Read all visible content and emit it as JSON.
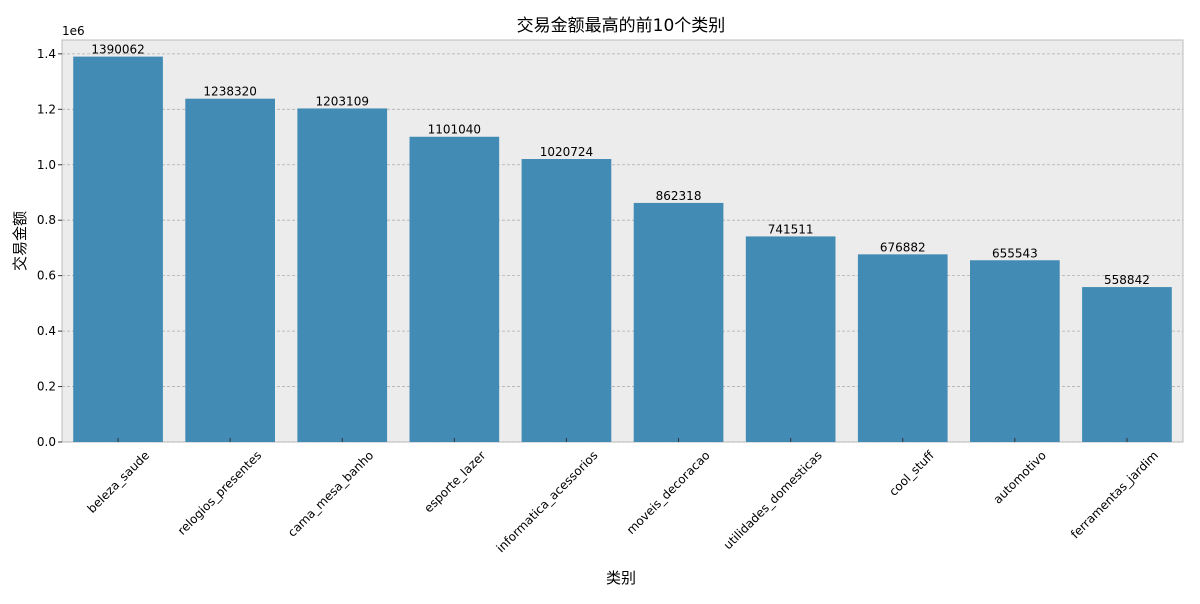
{
  "chart_data": {
    "type": "bar",
    "title": "交易金额最高的前10个类别",
    "xlabel": "类别",
    "ylabel": "交易金额",
    "y_offset_label": "1e6",
    "y_scale": 1000000,
    "ylim": [
      0,
      1.45
    ],
    "yticks": [
      "0.0",
      "0.2",
      "0.4",
      "0.6",
      "0.8",
      "1.0",
      "1.2",
      "1.4"
    ],
    "categories": [
      "beleza_saude",
      "relogios_presentes",
      "cama_mesa_banho",
      "esporte_lazer",
      "informatica_acessorios",
      "moveis_decoracao",
      "utilidades_domesticas",
      "cool_stuff",
      "automotivo",
      "ferramentas_jardim"
    ],
    "values": [
      1390062,
      1238320,
      1203109,
      1101040,
      1020724,
      862318,
      741511,
      676882,
      655543,
      558842
    ],
    "data_labels": [
      "1390062",
      "1238320",
      "1203109",
      "1101040",
      "1020724",
      "862318",
      "741511",
      "676882",
      "655543",
      "558842"
    ],
    "bar_color": "#428bb4",
    "plot_background": "#ececec",
    "grid": true,
    "grid_axis": "y",
    "grid_style": "dashed"
  }
}
